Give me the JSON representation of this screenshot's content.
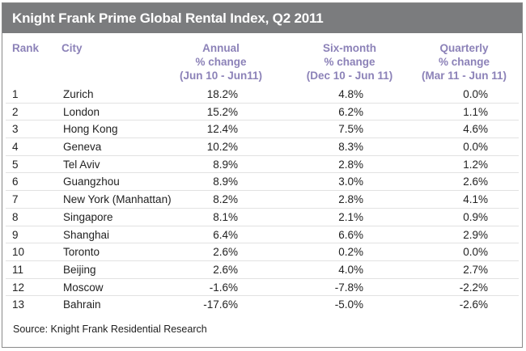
{
  "chart_data": {
    "type": "table",
    "title": "Knight Frank Prime Global Rental Index, Q2 2011",
    "columns": [
      {
        "label": "Rank"
      },
      {
        "label": "City"
      },
      {
        "label": "Annual",
        "sub1": "% change",
        "sub2": "(Jun 10 - Jun11)"
      },
      {
        "label": "Six-month",
        "sub1": "% change",
        "sub2": "(Dec 10 - Jun 11)"
      },
      {
        "label": "Quarterly",
        "sub1": "% change",
        "sub2": "(Mar 11 - Jun 11)"
      }
    ],
    "rows": [
      {
        "rank": "1",
        "city": "Zurich",
        "annual": "18.2%",
        "six_month": "4.8%",
        "quarterly": "0.0%"
      },
      {
        "rank": "2",
        "city": "London",
        "annual": "15.2%",
        "six_month": "6.2%",
        "quarterly": "1.1%"
      },
      {
        "rank": "3",
        "city": "Hong Kong",
        "annual": "12.4%",
        "six_month": "7.5%",
        "quarterly": "4.6%"
      },
      {
        "rank": "4",
        "city": "Geneva",
        "annual": "10.2%",
        "six_month": "8.3%",
        "quarterly": "0.0%"
      },
      {
        "rank": "5",
        "city": "Tel Aviv",
        "annual": "8.9%",
        "six_month": "2.8%",
        "quarterly": "1.2%"
      },
      {
        "rank": "6",
        "city": "Guangzhou",
        "annual": "8.9%",
        "six_month": "3.0%",
        "quarterly": "2.6%"
      },
      {
        "rank": "7",
        "city": "New York (Manhattan)",
        "annual": "8.2%",
        "six_month": "2.8%",
        "quarterly": "4.1%"
      },
      {
        "rank": "8",
        "city": "Singapore",
        "annual": "8.1%",
        "six_month": "2.1%",
        "quarterly": "0.9%"
      },
      {
        "rank": "9",
        "city": "Shanghai",
        "annual": "6.4%",
        "six_month": "6.6%",
        "quarterly": "2.9%"
      },
      {
        "rank": "10",
        "city": "Toronto",
        "annual": "2.6%",
        "six_month": "0.2%",
        "quarterly": "0.0%"
      },
      {
        "rank": "11",
        "city": "Beijing",
        "annual": "2.6%",
        "six_month": "4.0%",
        "quarterly": "2.7%"
      },
      {
        "rank": "12",
        "city": "Moscow",
        "annual": "-1.6%",
        "six_month": "-7.8%",
        "quarterly": "-2.2%"
      },
      {
        "rank": "13",
        "city": "Bahrain",
        "annual": "-17.6%",
        "six_month": "-5.0%",
        "quarterly": "-2.6%"
      }
    ],
    "source": "Source: Knight Frank Residential Research"
  },
  "colors": {
    "title_bar": "#7b7c7e",
    "header_text": "#8c82b8"
  }
}
